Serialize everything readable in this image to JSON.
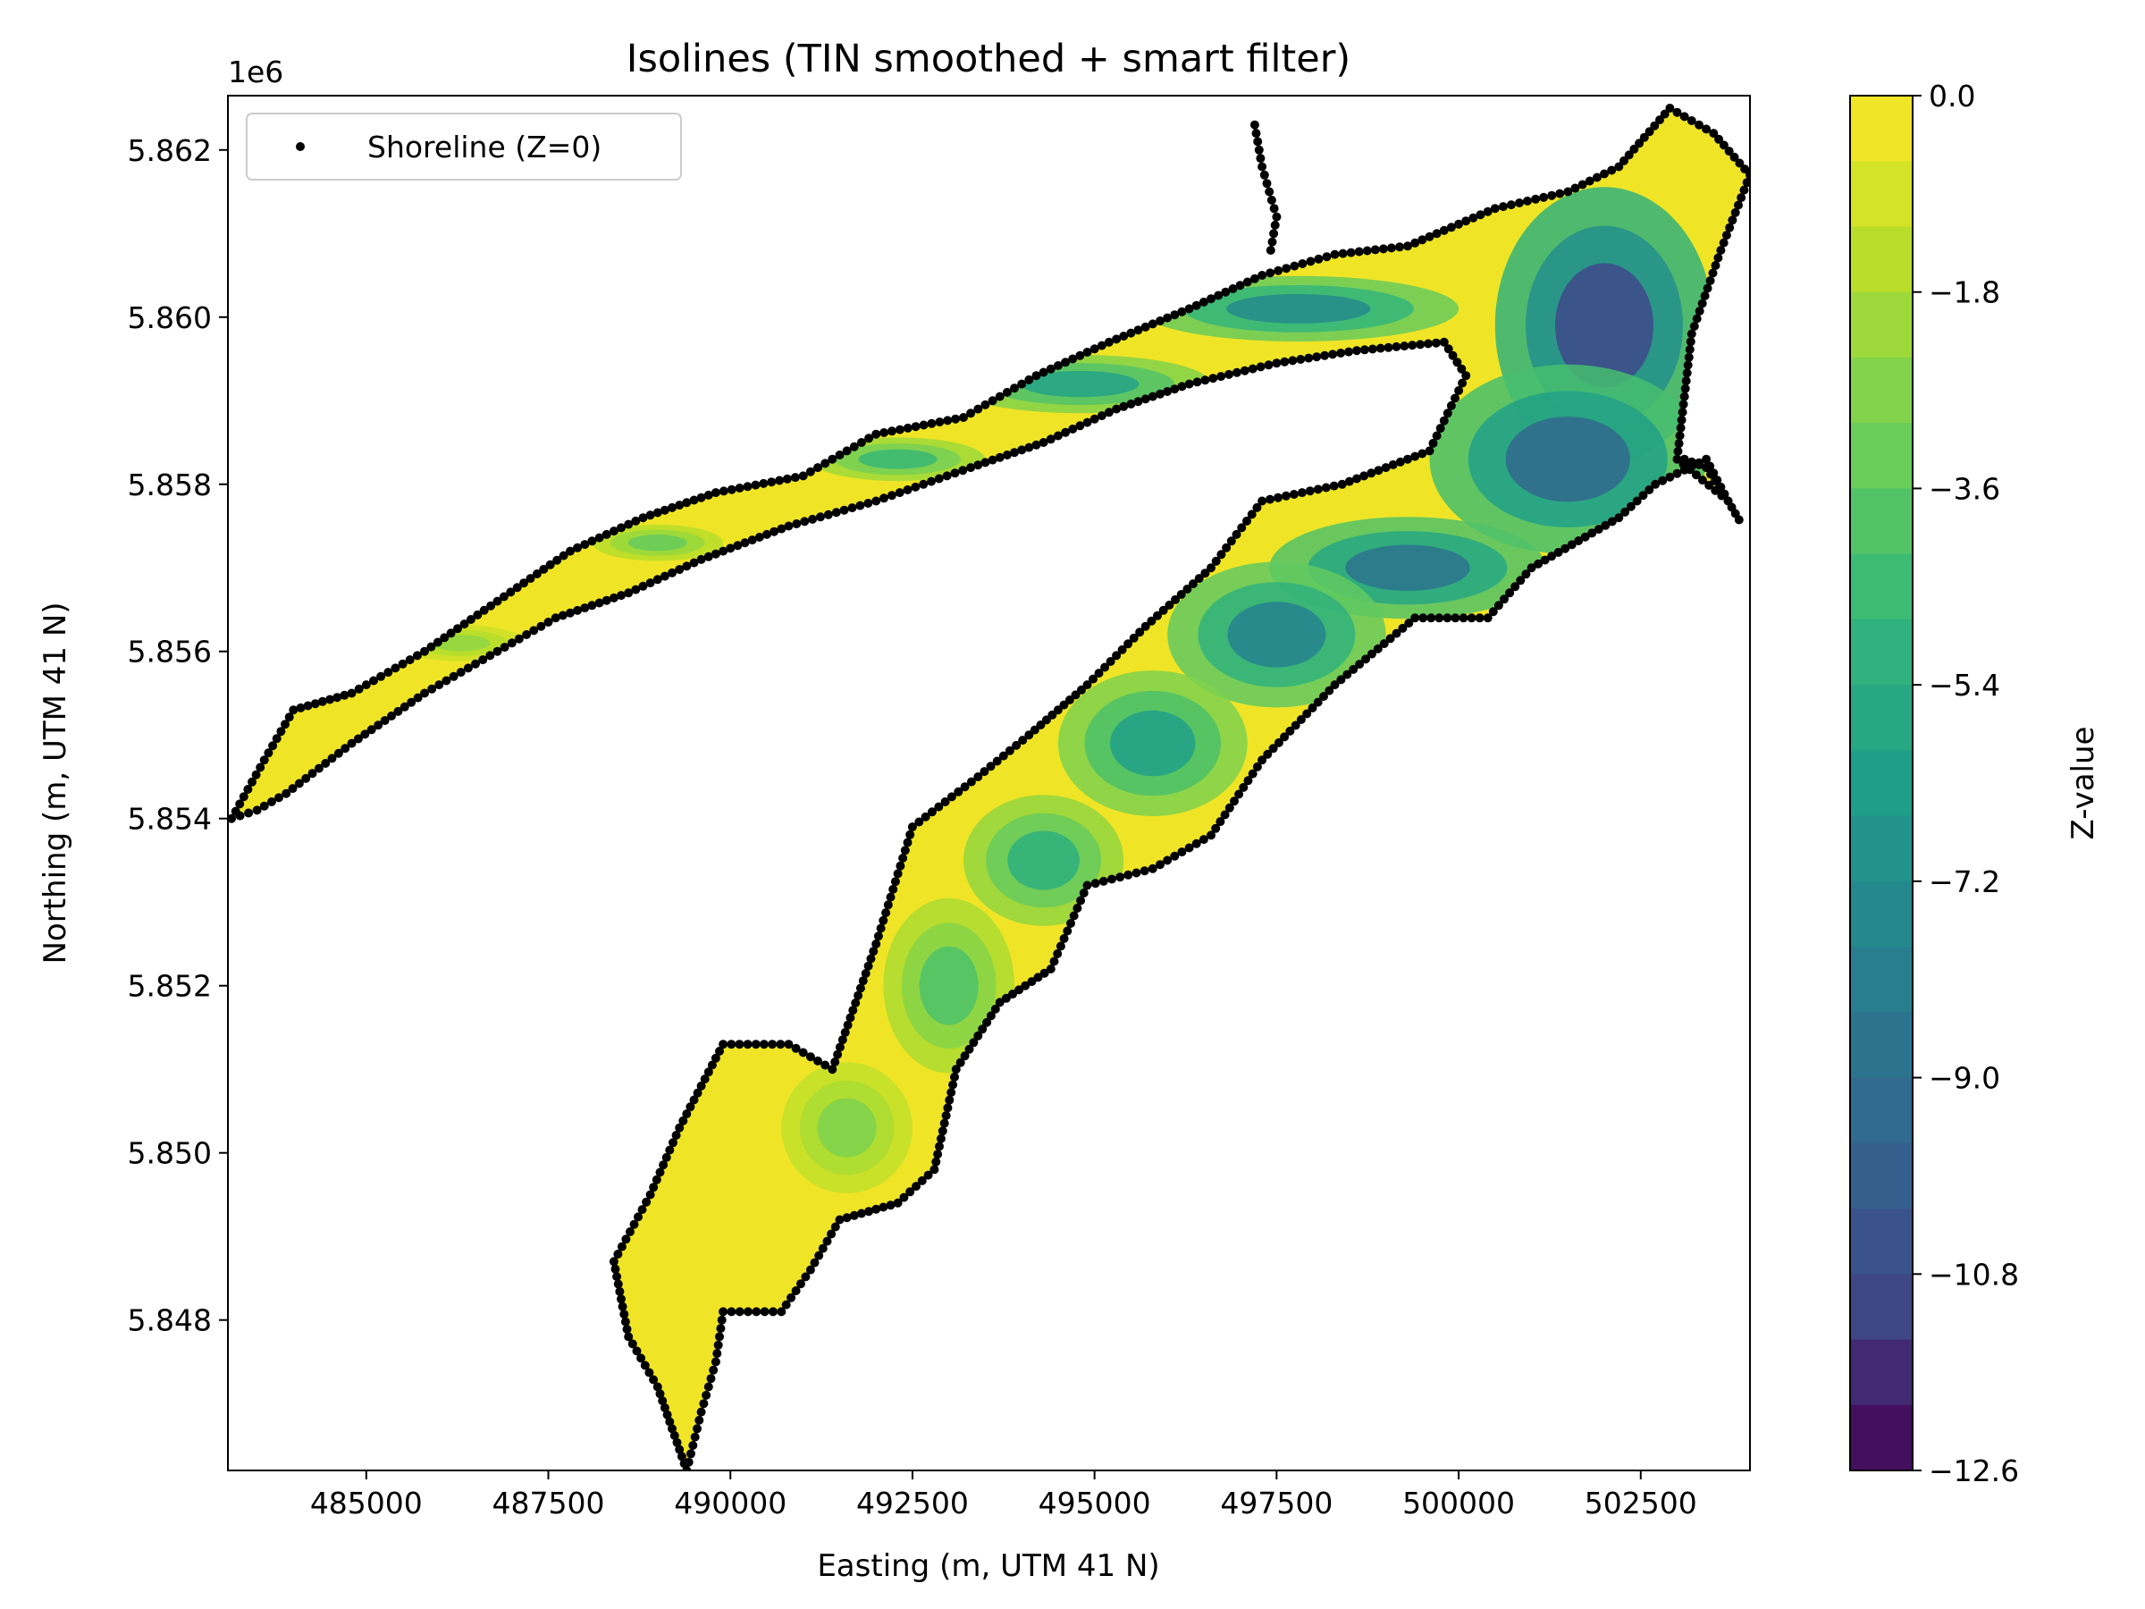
{
  "chart_data": {
    "type": "contour",
    "title": "Isolines (TIN smoothed + smart filter)",
    "xlabel": "Easting (m, UTM 41 N)",
    "ylabel": "Northing (m, UTM 41 N)",
    "y_offset_label": "1e6",
    "xlim": [
      483100,
      504000
    ],
    "ylim": [
      5846200,
      5862650
    ],
    "x_ticks": [
      485000,
      487500,
      490000,
      492500,
      495000,
      497500,
      500000,
      502500
    ],
    "x_tick_labels": [
      "485000",
      "487500",
      "490000",
      "492500",
      "495000",
      "497500",
      "500000",
      "502500"
    ],
    "y_ticks": [
      5848000,
      5850000,
      5852000,
      5854000,
      5856000,
      5858000,
      5860000,
      5862000
    ],
    "y_tick_labels": [
      "5.848",
      "5.850",
      "5.852",
      "5.854",
      "5.856",
      "5.858",
      "5.860",
      "5.862"
    ],
    "legend": {
      "label": "Shoreline (Z=0)",
      "position": "upper-left",
      "marker_color": "#000000"
    },
    "colorbar": {
      "label": "Z-value",
      "colormap": "viridis",
      "min": -12.6,
      "max": 0.0,
      "levels": 21,
      "tick_values": [
        0.0,
        -1.8,
        -3.6,
        -5.4,
        -7.2,
        -9.0,
        -10.8,
        -12.6
      ],
      "tick_labels": [
        "0.0",
        "−1.8",
        "−3.6",
        "−5.4",
        "−7.2",
        "−9.0",
        "−10.8",
        "−12.6"
      ]
    },
    "shoreline": [
      [
        483150,
        5854000
      ],
      [
        483600,
        5854700
      ],
      [
        484000,
        5855300
      ],
      [
        484800,
        5855500
      ],
      [
        485800,
        5856000
      ],
      [
        486800,
        5856600
      ],
      [
        487800,
        5857200
      ],
      [
        488800,
        5857600
      ],
      [
        489800,
        5857900
      ],
      [
        491000,
        5858100
      ],
      [
        492000,
        5858600
      ],
      [
        493200,
        5858800
      ],
      [
        494200,
        5859300
      ],
      [
        495200,
        5859700
      ],
      [
        496300,
        5860100
      ],
      [
        497300,
        5860500
      ],
      [
        498300,
        5860750
      ],
      [
        499300,
        5860850
      ],
      [
        500500,
        5861300
      ],
      [
        501500,
        5861500
      ],
      [
        502200,
        5861800
      ],
      [
        502900,
        5862500
      ],
      [
        503500,
        5862200
      ],
      [
        504000,
        5861700
      ],
      [
        503600,
        5860800
      ],
      [
        503200,
        5859800
      ],
      [
        503000,
        5858300
      ],
      [
        503700,
        5857800
      ],
      [
        503400,
        5858300
      ],
      [
        502700,
        5858000
      ],
      [
        502200,
        5857600
      ],
      [
        501000,
        5857000
      ],
      [
        500400,
        5856400
      ],
      [
        499400,
        5856400
      ],
      [
        498300,
        5855600
      ],
      [
        497300,
        5854700
      ],
      [
        496600,
        5853800
      ],
      [
        495800,
        5853400
      ],
      [
        494900,
        5853200
      ],
      [
        494400,
        5852200
      ],
      [
        493700,
        5851800
      ],
      [
        493100,
        5851000
      ],
      [
        492800,
        5849800
      ],
      [
        492300,
        5849400
      ],
      [
        491500,
        5849200
      ],
      [
        491100,
        5848600
      ],
      [
        490700,
        5848100
      ],
      [
        489900,
        5848100
      ],
      [
        489800,
        5847500
      ],
      [
        489600,
        5846900
      ],
      [
        489400,
        5846200
      ],
      [
        489200,
        5846700
      ],
      [
        489000,
        5847200
      ],
      [
        488600,
        5847800
      ],
      [
        488400,
        5848700
      ],
      [
        488900,
        5849500
      ],
      [
        489300,
        5850300
      ],
      [
        489900,
        5851300
      ],
      [
        490800,
        5851300
      ],
      [
        491400,
        5851000
      ],
      [
        492000,
        5852500
      ],
      [
        492500,
        5853900
      ],
      [
        493400,
        5854500
      ],
      [
        494100,
        5855000
      ],
      [
        494900,
        5855600
      ],
      [
        495700,
        5856300
      ],
      [
        496600,
        5857000
      ],
      [
        497300,
        5857800
      ],
      [
        498400,
        5858000
      ],
      [
        499600,
        5858400
      ],
      [
        500100,
        5859300
      ],
      [
        499800,
        5859700
      ],
      [
        498600,
        5859600
      ],
      [
        497500,
        5859450
      ],
      [
        496300,
        5859200
      ],
      [
        495300,
        5858900
      ],
      [
        494300,
        5858500
      ],
      [
        493300,
        5858200
      ],
      [
        492000,
        5857800
      ],
      [
        490800,
        5857500
      ],
      [
        489600,
        5857100
      ],
      [
        488600,
        5856700
      ],
      [
        487600,
        5856400
      ],
      [
        486800,
        5856000
      ],
      [
        485800,
        5855500
      ],
      [
        484800,
        5854900
      ],
      [
        483900,
        5854300
      ],
      [
        483500,
        5854100
      ],
      [
        483150,
        5854000
      ]
    ],
    "shoreline_inlets": [
      [
        [
          497200,
          5862300
        ],
        [
          497300,
          5861800
        ],
        [
          497500,
          5861200
        ],
        [
          497400,
          5860700
        ]
      ],
      [
        [
          503100,
          5858300
        ],
        [
          503400,
          5858200
        ],
        [
          503700,
          5857800
        ],
        [
          503900,
          5857500
        ]
      ]
    ],
    "depth_lobes": [
      {
        "center": [
          502000,
          5859900
        ],
        "radius": [
          1500,
          1900
        ],
        "z": -11.0
      },
      {
        "center": [
          501500,
          5858300
        ],
        "radius": [
          1900,
          1300
        ],
        "z": -9.4
      },
      {
        "center": [
          499300,
          5857000
        ],
        "radius": [
          1900,
          700
        ],
        "z": -8.8
      },
      {
        "center": [
          497500,
          5856200
        ],
        "radius": [
          1500,
          1000
        ],
        "z": -7.8
      },
      {
        "center": [
          495800,
          5854900
        ],
        "radius": [
          1300,
          1000
        ],
        "z": -6.2
      },
      {
        "center": [
          494300,
          5853500
        ],
        "radius": [
          1100,
          900
        ],
        "z": -5.2
      },
      {
        "center": [
          493000,
          5852000
        ],
        "radius": [
          900,
          1200
        ],
        "z": -4.0
      },
      {
        "center": [
          491600,
          5850300
        ],
        "radius": [
          900,
          900
        ],
        "z": -2.8
      },
      {
        "center": [
          497800,
          5860100
        ],
        "radius": [
          2200,
          450
        ],
        "z": -7.4
      },
      {
        "center": [
          494800,
          5859200
        ],
        "radius": [
          1800,
          400
        ],
        "z": -6.0
      },
      {
        "center": [
          492300,
          5858300
        ],
        "radius": [
          1200,
          300
        ],
        "z": -4.6
      },
      {
        "center": [
          489000,
          5857300
        ],
        "radius": [
          900,
          250
        ],
        "z": -3.4
      },
      {
        "center": [
          486300,
          5856100
        ],
        "radius": [
          900,
          250
        ],
        "z": -2.4
      }
    ]
  }
}
